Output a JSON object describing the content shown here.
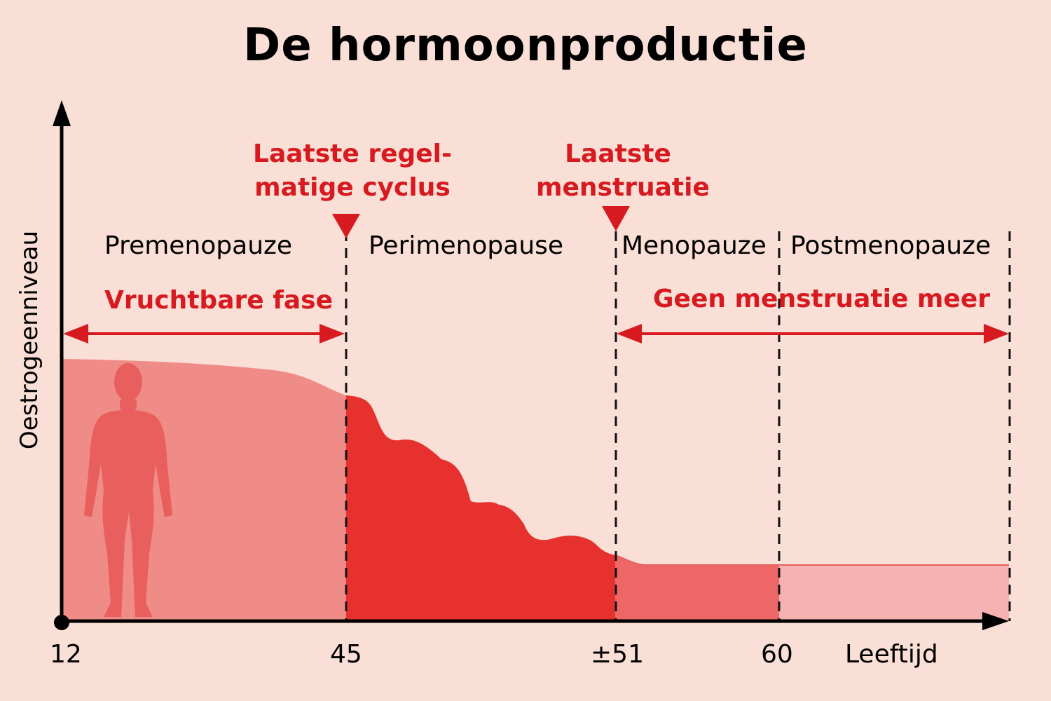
{
  "title": "De hormoonproductie",
  "y_axis_label": "Oestrogeenniveau",
  "x_axis_label": "Leeftijd",
  "ticks": {
    "t12": "12",
    "t45": "45",
    "t51": "±51",
    "t60": "60"
  },
  "phases": {
    "premenopauze": "Premenopauze",
    "perimenopause": "Perimenopause",
    "menopauze": "Menopauze",
    "postmenopauze": "Postmenopauze"
  },
  "annotations": {
    "regular_cycle": {
      "line1": "Laatste regel-",
      "line2": "matige cyclus"
    },
    "last_menstruation": {
      "line1": "Laatste",
      "line2": "menstruatie"
    }
  },
  "ranges": {
    "fertile": "Vruchtbare fase",
    "no_menstruation": "Geen menstruatie meer"
  },
  "colors": {
    "background": "#f9dfd5",
    "accent_red": "#d71920",
    "premenopause_fill": "#f08c88",
    "perimenopause_fill": "#e6312f",
    "menopause_fill": "#ec6766",
    "postmenopause_fill": "#f6b2b1",
    "silhouette": "#e95f5d"
  },
  "icons": {
    "silhouette": "woman-silhouette-icon"
  }
}
